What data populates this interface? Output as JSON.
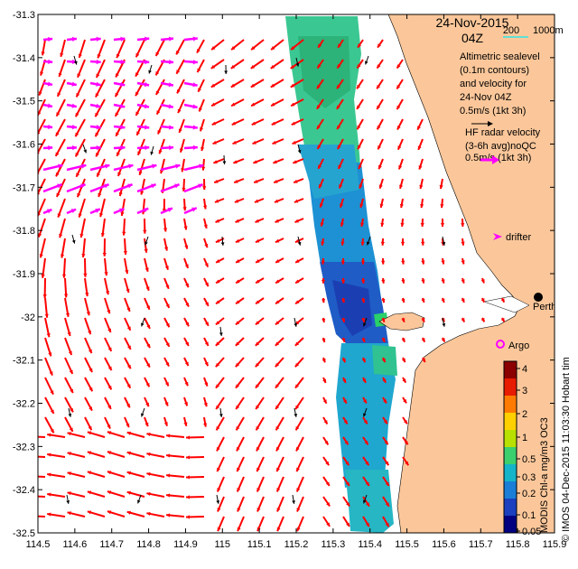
{
  "header": {
    "date": "24-Nov-2015",
    "hour": "04Z"
  },
  "scale_bar": {
    "left_label": "200",
    "right_label": "1000m"
  },
  "legend": {
    "altimetric_lines": [
      "Altimetric sealevel",
      "(0.1m contours)",
      "and velocity for",
      "24-Nov 04Z",
      "0.5m/s (1kt 3h)"
    ],
    "hf_radar_lines": [
      "HF radar velocity",
      "(3-6h avg)noQC",
      "0.5m/s (1kt 3h)"
    ],
    "drifter_label": "drifter",
    "argo_label": "Argo",
    "place_label": "Perth",
    "hobart_fragment": "Hobart tim"
  },
  "colorbar": {
    "title": "MODIS Chl-a mg/m3 OC3",
    "ticks": [
      "4",
      "3",
      "2",
      "1",
      "0.5",
      "0.3",
      "0.2",
      "0.1",
      "0.05"
    ],
    "colors": [
      "#8b0000",
      "#e61b00",
      "#ff7a00",
      "#ffd000",
      "#b8e000",
      "#3ccf6e",
      "#16b4c8",
      "#1a7ed6",
      "#1a3fbf",
      "#000080"
    ]
  },
  "credit": "© IMOS 04-Dec-2015 11:03:30 Hobart tim",
  "axes": {
    "x_ticks": [
      "114.5",
      "114.6",
      "114.7",
      "114.8",
      "114.9",
      "115",
      "115.1",
      "115.2",
      "115.3",
      "115.4",
      "115.5",
      "115.6",
      "115.7",
      "115.8",
      "115.9"
    ],
    "y_ticks": [
      "-31.3",
      "-31.4",
      "-31.5",
      "-31.6",
      "-31.7",
      "-31.8",
      "-31.9",
      "-32",
      "-32.1",
      "-32.2",
      "-32.3",
      "-32.4",
      "-32.5"
    ],
    "lon_range": [
      114.5,
      115.9
    ],
    "lat_range": [
      -32.5,
      -31.3
    ]
  },
  "colors": {
    "land": "#fbc79a",
    "altimetry_arrow": "#ff0000",
    "hf_radar_arrow": "#ff00ff",
    "drifter_arrow": "#000000",
    "contour": "#2ee6e6",
    "scale_bar": "#2ee6e6"
  }
}
